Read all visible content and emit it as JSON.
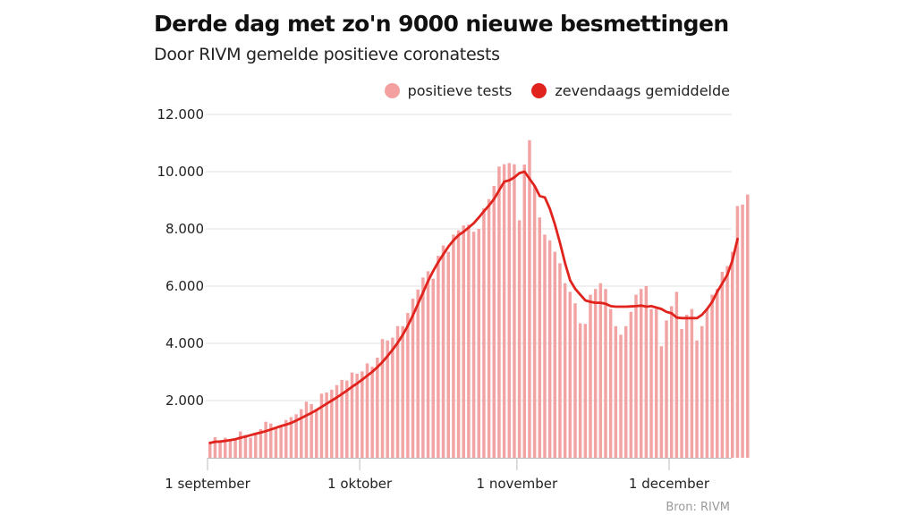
{
  "header": {
    "title": "Derde dag met zo'n 9000 nieuwe besmettingen",
    "subtitle": "Door RIVM gemelde positieve coronatests"
  },
  "legend": {
    "items": [
      {
        "label": "positieve tests",
        "color": "#f4a0a0"
      },
      {
        "label": "zevendaags gemiddelde",
        "color": "#e0231c"
      }
    ]
  },
  "source": "Bron: RIVM",
  "colors": {
    "bars": "#f2a3a3",
    "line": "#e0231c",
    "grid": "#ececec",
    "axis": "#bbbbbb"
  },
  "chart_data": {
    "type": "bar",
    "title": "Derde dag met zo'n 9000 nieuwe besmettingen",
    "subtitle": "Door RIVM gemelde positieve coronatests",
    "xlabel": "",
    "ylabel": "",
    "ylim": [
      0,
      12000
    ],
    "yticks": [
      2000,
      4000,
      6000,
      8000,
      10000,
      12000
    ],
    "ytick_labels": [
      "2.000",
      "4.000",
      "6.000",
      "8.000",
      "10.000",
      "12.000"
    ],
    "xtick_labels": [
      {
        "label": "1 september",
        "day_index": 0
      },
      {
        "label": "1 oktober",
        "day_index": 30
      },
      {
        "label": "1 november",
        "day_index": 61
      },
      {
        "label": "1 december",
        "day_index": 91
      }
    ],
    "grid": true,
    "legend_position": "top-right",
    "start_date": "1 september",
    "series": [
      {
        "name": "positieve tests",
        "type": "bar",
        "values": [
          560,
          720,
          600,
          700,
          620,
          640,
          920,
          800,
          700,
          860,
          1000,
          1260,
          1200,
          1020,
          1080,
          1320,
          1420,
          1520,
          1700,
          1960,
          1880,
          1700,
          2240,
          2280,
          2380,
          2540,
          2720,
          2700,
          2980,
          2940,
          3020,
          3300,
          3180,
          3500,
          4150,
          4100,
          4200,
          4600,
          4600,
          5060,
          5560,
          5880,
          6300,
          6520,
          6260,
          7060,
          7420,
          7200,
          7800,
          7950,
          8120,
          8150,
          7900,
          8000,
          8720,
          9040,
          9500,
          10180,
          10260,
          10300,
          10260,
          8300,
          10250,
          11100,
          9500,
          8400,
          7800,
          7600,
          7200,
          6800,
          6100,
          5800,
          5400,
          4700,
          4680,
          5700,
          5900,
          6100,
          5900,
          5200,
          4600,
          4300,
          4600,
          5100,
          5700,
          5900,
          6000,
          5200,
          5200,
          3900,
          4800,
          5300,
          5800,
          4500,
          5000,
          5200,
          4100,
          4600,
          5200,
          5700,
          5900,
          6500,
          6700,
          7200,
          8800,
          8850,
          9200
        ]
      },
      {
        "name": "zevendaags gemiddelde",
        "type": "line",
        "values": [
          520,
          560,
          570,
          590,
          620,
          650,
          700,
          740,
          790,
          840,
          880,
          930,
          990,
          1050,
          1110,
          1160,
          1220,
          1300,
          1390,
          1480,
          1570,
          1670,
          1780,
          1890,
          2000,
          2110,
          2230,
          2350,
          2480,
          2600,
          2730,
          2870,
          3010,
          3170,
          3350,
          3560,
          3780,
          4020,
          4300,
          4620,
          4980,
          5380,
          5780,
          6180,
          6530,
          6840,
          7120,
          7380,
          7600,
          7780,
          7900,
          8050,
          8200,
          8400,
          8620,
          8820,
          9050,
          9350,
          9650,
          9700,
          9800,
          9950,
          10000,
          9750,
          9500,
          9150,
          9100,
          8700,
          8150,
          7500,
          6800,
          6200,
          5900,
          5700,
          5500,
          5450,
          5420,
          5420,
          5380,
          5300,
          5280,
          5280,
          5280,
          5290,
          5300,
          5320,
          5280,
          5300,
          5250,
          5200,
          5100,
          5050,
          4900,
          4880,
          4880,
          4880,
          4880,
          5000,
          5200,
          5450,
          5800,
          6100,
          6400,
          6900,
          7650
        ]
      }
    ]
  }
}
